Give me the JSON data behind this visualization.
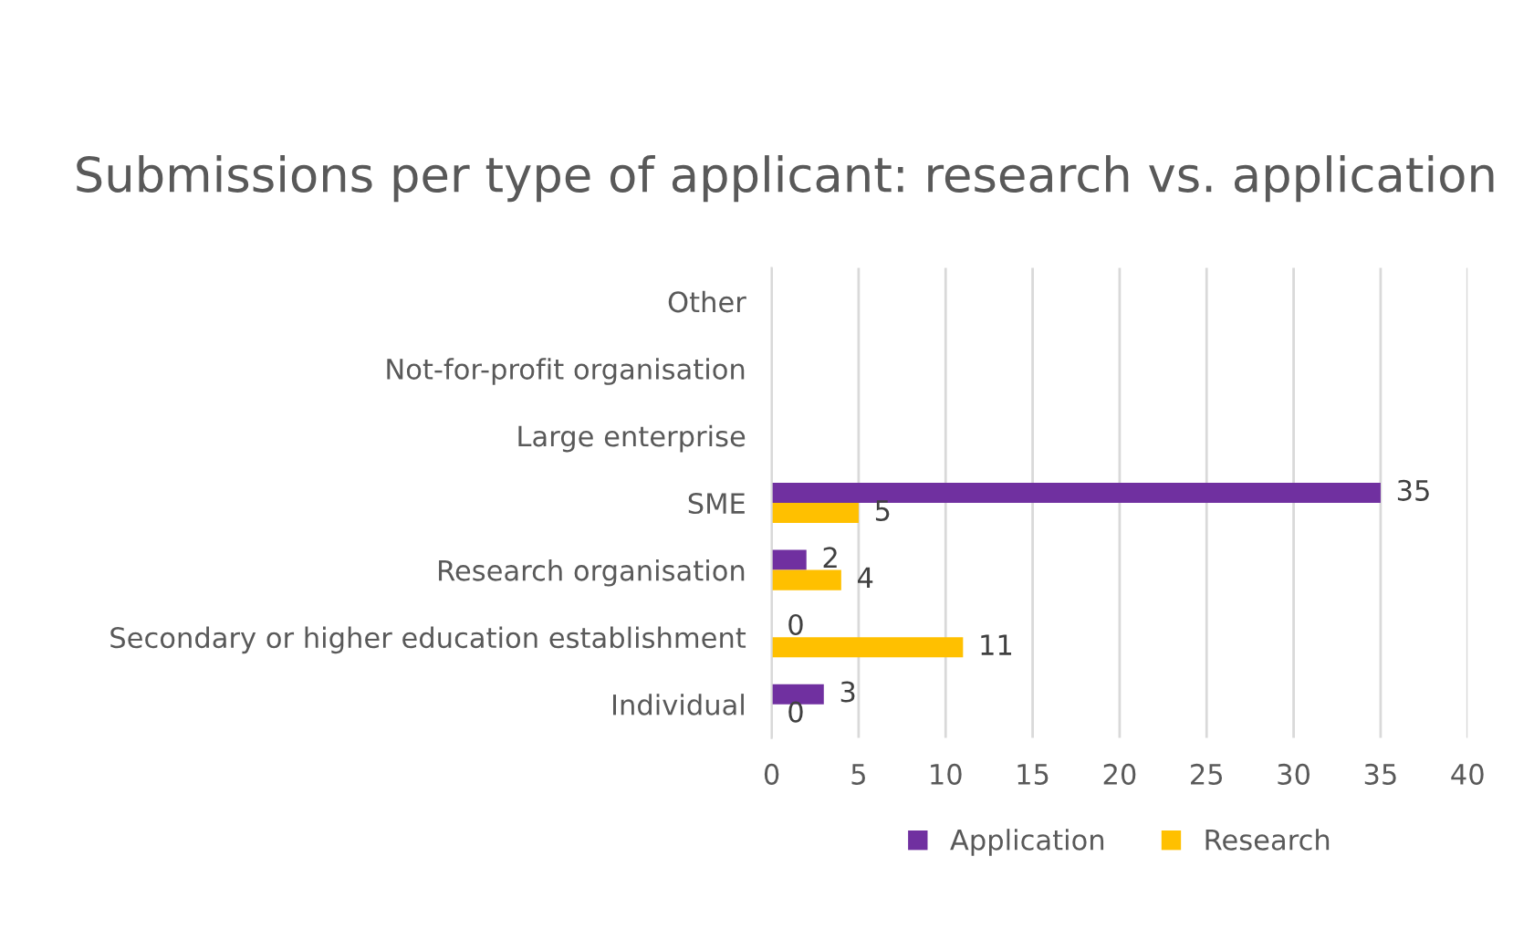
{
  "chart_data": {
    "type": "bar",
    "orientation": "horizontal",
    "title": "Submissions per type of applicant: research vs. application",
    "categories": [
      "Other",
      "Not-for-profit organisation",
      "Large enterprise",
      "SME",
      "Research organisation",
      "Secondary or higher education establishment",
      "Individual"
    ],
    "series": [
      {
        "name": "Application",
        "color": "#7030a0",
        "values": [
          null,
          null,
          null,
          35,
          2,
          0,
          3
        ]
      },
      {
        "name": "Research",
        "color": "#ffc000",
        "values": [
          null,
          null,
          null,
          5,
          4,
          11,
          0
        ]
      }
    ],
    "xlim": [
      0,
      40
    ],
    "xticks": [
      0,
      5,
      10,
      15,
      20,
      25,
      30,
      35,
      40
    ],
    "grid": "x",
    "legend": "bottom",
    "data_labels": true
  }
}
